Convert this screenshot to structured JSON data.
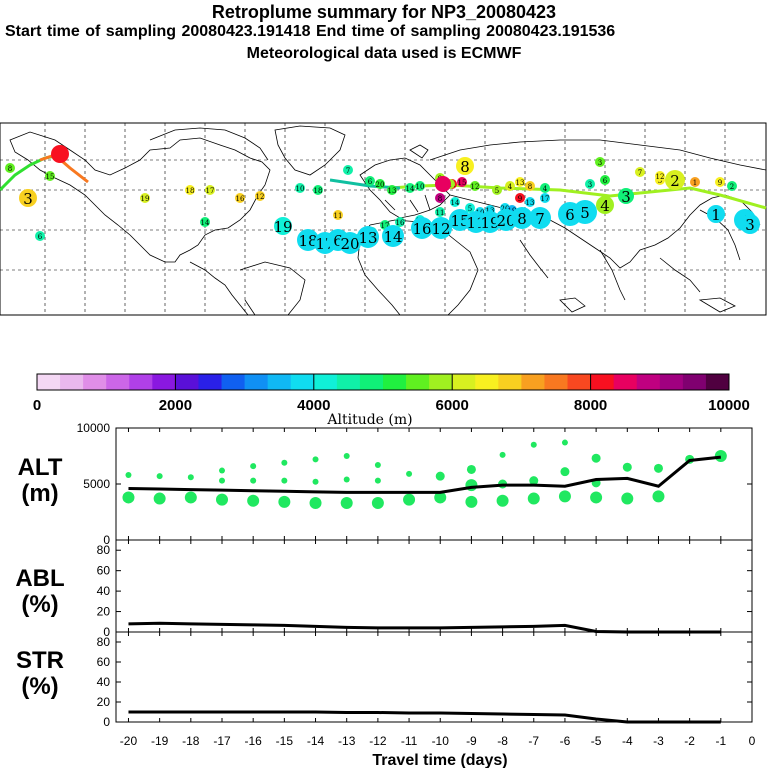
{
  "header": {
    "title": "Retroplume summary for NP3_20080423",
    "sampling_line": "Start time of sampling 20080423.191418     End time of sampling 20080423.191536",
    "met_line": "Meteorological data used is ECMWF"
  },
  "colors": {
    "altitude_scale": [
      "#f4d8f4",
      "#eab8ee",
      "#e08ee8",
      "#cc66e8",
      "#b040e8",
      "#8a18e0",
      "#5a10d8",
      "#2a20e8",
      "#1060f0",
      "#1090f4",
      "#10b8f4",
      "#10dcf0",
      "#10f0d8",
      "#10f0a8",
      "#10f078",
      "#20f040",
      "#60f020",
      "#a0f020",
      "#d8f020",
      "#f8f020",
      "#f8d020",
      "#f8a020",
      "#f87820",
      "#f84820",
      "#f81020",
      "#e80060",
      "#c00080",
      "#a00080",
      "#800070",
      "#500040"
    ],
    "plume": "#20e860",
    "line": "#000000"
  },
  "map": {
    "track_labels": [
      "8",
      "2",
      "15",
      "3",
      "6",
      "19",
      "18",
      "17",
      "16",
      "12",
      "14",
      "20",
      "11",
      "10",
      "18",
      "7",
      "6",
      "20",
      "13",
      "14",
      "10",
      "9",
      "11",
      "15",
      "12",
      "5",
      "4",
      "13",
      "8",
      "4",
      "3",
      "6",
      "5",
      "1",
      "9",
      "2",
      "3",
      "7",
      "12",
      "15",
      "16",
      "17",
      "18",
      "19",
      "20",
      "11",
      "14",
      "5",
      "10",
      "13",
      "20",
      "19",
      "13",
      "17",
      "9",
      "8",
      "1",
      "2"
    ],
    "overlay_numbers": [
      "19",
      "18",
      "17",
      "6",
      "20",
      "13",
      "14",
      "16",
      "12",
      "15",
      "11",
      "19",
      "20",
      "8",
      "7",
      "6",
      "5",
      "4",
      "3",
      "2",
      "1",
      "4",
      "3"
    ]
  },
  "colorbar": {
    "tick_labels": [
      "0",
      "2000",
      "4000",
      "6000",
      "8000",
      "10000"
    ],
    "title": "Altitude (m)"
  },
  "panels": {
    "alt": {
      "label": "ALT",
      "unit": "(m)"
    },
    "abl": {
      "label": "ABL",
      "unit": "(%)"
    },
    "str": {
      "label": "STR",
      "unit": "(%)"
    }
  },
  "chart_data": [
    {
      "type": "line",
      "name": "ALT",
      "ylabel": "ALT (m)",
      "ylim": [
        0,
        10000
      ],
      "yticks": [
        "0",
        "5000",
        "10000"
      ],
      "x": [
        -20,
        -19,
        -18,
        -17,
        -16,
        -15,
        -14,
        -13,
        -12,
        -11,
        -10,
        -9,
        -8,
        -7,
        -6,
        -5,
        -4,
        -3,
        -2,
        -1
      ],
      "values": [
        4600,
        4550,
        4500,
        4450,
        4400,
        4350,
        4300,
        4250,
        4250,
        4250,
        4250,
        4700,
        4900,
        4900,
        4800,
        5400,
        5500,
        4800,
        7100,
        7400
      ],
      "scatter": {
        "x": [
          -20,
          -20,
          -19,
          -19,
          -18,
          -18,
          -17,
          -17,
          -17,
          -16,
          -16,
          -16,
          -15,
          -15,
          -15,
          -14,
          -14,
          -14,
          -13,
          -13,
          -13,
          -12,
          -12,
          -12,
          -11,
          -11,
          -10,
          -10,
          -9,
          -9,
          -9,
          -8,
          -8,
          -8,
          -7,
          -7,
          -7,
          -6,
          -6,
          -6,
          -5,
          -5,
          -5,
          -4,
          -4,
          -3,
          -3,
          -2,
          -1
        ],
        "y": [
          5800,
          3800,
          5700,
          3700,
          5600,
          3800,
          6200,
          5300,
          3600,
          6600,
          5300,
          3500,
          6900,
          5300,
          3400,
          7200,
          5200,
          3300,
          7500,
          5400,
          3300,
          6700,
          5300,
          3300,
          5900,
          3600,
          5700,
          3800,
          6300,
          4900,
          3400,
          7600,
          5000,
          3500,
          8500,
          5300,
          3700,
          8700,
          6100,
          3900,
          7300,
          5100,
          3800,
          6500,
          3700,
          6400,
          3900,
          7200,
          7500
        ],
        "sizes": [
          1,
          3,
          1,
          3,
          1,
          3,
          1,
          1,
          3,
          1,
          1,
          3,
          1,
          1,
          3,
          1,
          1,
          3,
          1,
          1,
          3,
          1,
          1,
          3,
          1,
          3,
          2,
          3,
          2,
          3,
          3,
          1,
          2,
          3,
          1,
          2,
          3,
          1,
          2,
          3,
          2,
          2,
          3,
          2,
          3,
          2,
          3,
          2,
          3
        ]
      },
      "xlabel": "Travel time (days)",
      "xticks": [
        "-20",
        "-19",
        "-18",
        "-17",
        "-16",
        "-15",
        "-14",
        "-13",
        "-12",
        "-11",
        "-10",
        "-9",
        "-8",
        "-7",
        "-6",
        "-5",
        "-4",
        "-3",
        "-2",
        "-1",
        "0"
      ]
    },
    {
      "type": "line",
      "name": "ABL",
      "ylabel": "ABL (%)",
      "ylim": [
        0,
        90
      ],
      "yticks": [
        "0",
        "20",
        "40",
        "60",
        "80"
      ],
      "x": [
        -20,
        -19,
        -18,
        -17,
        -16,
        -15,
        -14,
        -13,
        -12,
        -11,
        -10,
        -9,
        -8,
        -7,
        -6,
        -5,
        -4,
        -3,
        -2,
        -1
      ],
      "values": [
        8,
        8.5,
        8,
        7.5,
        7,
        6.5,
        5.5,
        4.5,
        4,
        4,
        4,
        4.5,
        5,
        5.5,
        6.5,
        0.5,
        0,
        0,
        0,
        0
      ]
    },
    {
      "type": "line",
      "name": "STR",
      "ylabel": "STR (%)",
      "ylim": [
        0,
        90
      ],
      "yticks": [
        "0",
        "20",
        "40",
        "60",
        "80"
      ],
      "x": [
        -20,
        -19,
        -18,
        -17,
        -16,
        -15,
        -14,
        -13,
        -12,
        -11,
        -10,
        -9,
        -8,
        -7,
        -6,
        -5,
        -4,
        -3,
        -2,
        -1
      ],
      "values": [
        10,
        10,
        10,
        10,
        10,
        10,
        10,
        9.5,
        9.5,
        9,
        9,
        8.5,
        8,
        7.5,
        7,
        3,
        0,
        0,
        0,
        0
      ]
    }
  ]
}
